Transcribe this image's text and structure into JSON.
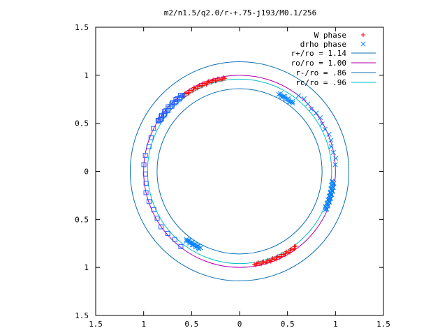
{
  "chart_data": {
    "type": "scatter",
    "title": "m2/n1.5/q2.0/r-+.75-j193/M0.1/256",
    "xlabel": "",
    "ylabel": "",
    "xlim": [
      -1.5,
      1.5
    ],
    "ylim": [
      -1.5,
      1.5
    ],
    "x_ticks": [
      "1.5",
      "1",
      "0.5",
      "0",
      "0.5",
      "1",
      "1.5"
    ],
    "y_ticks": [
      "1.5",
      "1",
      "0.5",
      "0",
      "0.5",
      "1",
      "1.5"
    ],
    "grid": false,
    "legend_position": "top-right",
    "circles": [
      {
        "name": "r+/ro = 1.14",
        "radius": 1.14,
        "color": "#0b6fb5"
      },
      {
        "name": "ro/ro = 1.00",
        "radius": 1.0,
        "color": "#b000b0"
      },
      {
        "name": "r-/ro = .86",
        "radius": 0.86,
        "color": "#0b6fb5"
      },
      {
        "name": "rc/ro = .96",
        "radius": 0.96,
        "color": "#00c0c0"
      }
    ],
    "series": [
      {
        "name": "W phase",
        "marker": "plus",
        "color": "#ff0000",
        "arcs": [
          {
            "radius": 0.98,
            "angle_start_deg": 99,
            "angle_end_deg": 127,
            "count": 34
          },
          {
            "radius": 0.98,
            "angle_start_deg": 279,
            "angle_end_deg": 307,
            "count": 34
          }
        ]
      },
      {
        "name": "drho phase",
        "marker": "x",
        "color": "#0080ff",
        "arcs": [
          {
            "radius": 0.9,
            "angle_start_deg": 52,
            "angle_end_deg": 63,
            "count": 14
          },
          {
            "radius": 1.0,
            "angle_start_deg": 4,
            "angle_end_deg": 52,
            "count": 14
          },
          {
            "radius": 0.98,
            "angle_start_deg": -24,
            "angle_end_deg": -6,
            "count": 30
          },
          {
            "radius": 0.9,
            "angle_start_deg": 232,
            "angle_end_deg": 243,
            "count": 18
          }
        ]
      },
      {
        "name": "",
        "marker": "square",
        "color": "#2060ff",
        "arcs": [
          {
            "radius": 0.99,
            "angle_start_deg": 127,
            "angle_end_deg": 148,
            "count": 24
          },
          {
            "radius": 0.99,
            "angle_start_deg": 148,
            "angle_end_deg": 232,
            "count": 16
          }
        ]
      }
    ]
  }
}
